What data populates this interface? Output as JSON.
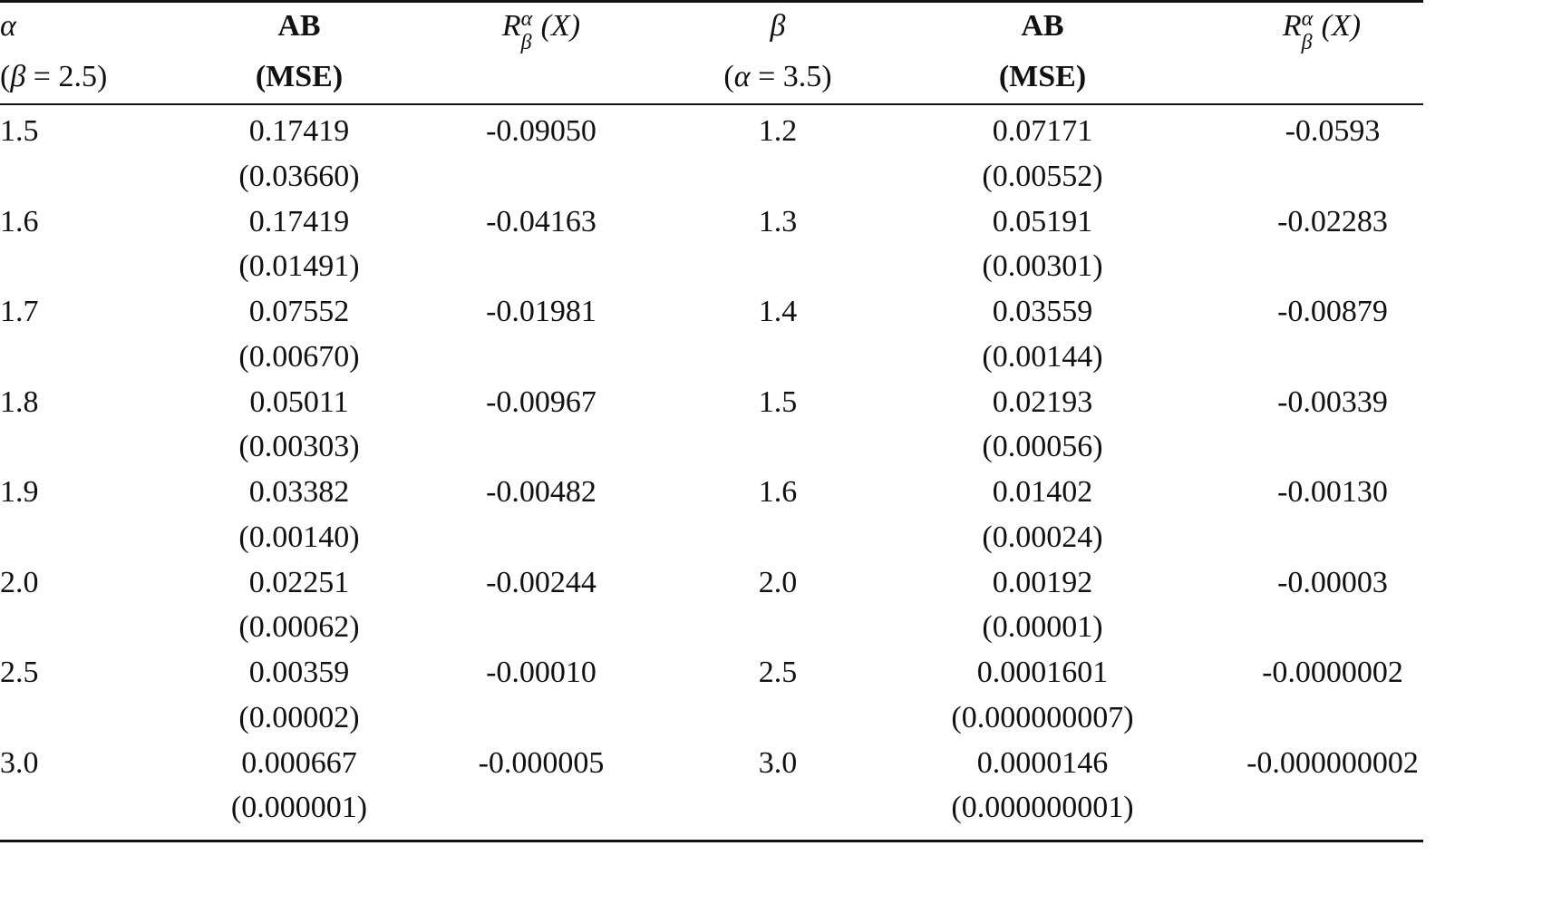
{
  "header": {
    "row1": {
      "alpha": "α",
      "ab1": "AB",
      "r_base": "R",
      "r_sup": "α",
      "r_sub": "β",
      "r_arg": "(X)",
      "beta": "β",
      "ab2": "AB"
    },
    "row2": {
      "alpha_cond_open": "(",
      "alpha_cond_var": "β",
      "alpha_cond_rest": " = 2.5)",
      "mse1": "(MSE)",
      "beta_cond_open": "(",
      "beta_cond_var": "α",
      "beta_cond_rest": " = 3.5)",
      "mse2": "(MSE)"
    }
  },
  "rows": [
    {
      "alpha": "1.5",
      "ab1": "0.17419",
      "mse1": "(0.03660)",
      "r1": "-0.09050",
      "beta": "1.2",
      "ab2": "0.07171",
      "mse2": "(0.00552)",
      "r2": "-0.0593"
    },
    {
      "alpha": "1.6",
      "ab1": "0.17419",
      "mse1": "(0.01491)",
      "r1": "-0.04163",
      "beta": "1.3",
      "ab2": "0.05191",
      "mse2": "(0.00301)",
      "r2": "-0.02283"
    },
    {
      "alpha": "1.7",
      "ab1": "0.07552",
      "mse1": "(0.00670)",
      "r1": "-0.01981",
      "beta": "1.4",
      "ab2": "0.03559",
      "mse2": "(0.00144)",
      "r2": "-0.00879"
    },
    {
      "alpha": "1.8",
      "ab1": "0.05011",
      "mse1": "(0.00303)",
      "r1": "-0.00967",
      "beta": "1.5",
      "ab2": "0.02193",
      "mse2": "(0.00056)",
      "r2": "-0.00339"
    },
    {
      "alpha": "1.9",
      "ab1": "0.03382",
      "mse1": "(0.00140)",
      "r1": "-0.00482",
      "beta": "1.6",
      "ab2": "0.01402",
      "mse2": "(0.00024)",
      "r2": "-0.00130"
    },
    {
      "alpha": "2.0",
      "ab1": "0.02251",
      "mse1": "(0.00062)",
      "r1": "-0.00244",
      "beta": "2.0",
      "ab2": "0.00192",
      "mse2": "(0.00001)",
      "r2": "-0.00003"
    },
    {
      "alpha": "2.5",
      "ab1": "0.00359",
      "mse1": "(0.00002)",
      "r1": "-0.00010",
      "beta": "2.5",
      "ab2": "0.0001601",
      "mse2": "(0.000000007)",
      "r2": "-0.0000002"
    },
    {
      "alpha": "3.0",
      "ab1": "0.000667",
      "mse1": "(0.000001)",
      "r1": "-0.000005",
      "beta": "3.0",
      "ab2": "0.0000146",
      "mse2": "(0.000000001)",
      "r2": "-0.000000002"
    }
  ]
}
